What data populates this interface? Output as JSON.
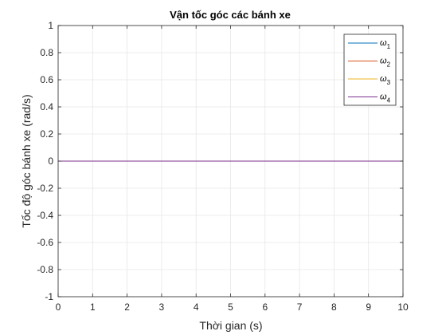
{
  "chart_data": {
    "type": "line",
    "title": "Vận tốc góc các bánh xe",
    "xlabel": "Thời gian (s)",
    "ylabel": "Tốc độ góc bánh xe (rad/s)",
    "xlim": [
      0,
      10
    ],
    "ylim": [
      -1,
      1
    ],
    "xticks": [
      0,
      1,
      2,
      3,
      4,
      5,
      6,
      7,
      8,
      9,
      10
    ],
    "yticks": [
      -1,
      -0.8,
      -0.6,
      -0.4,
      -0.2,
      0,
      0.2,
      0.4,
      0.6,
      0.8,
      1
    ],
    "xtick_labels": [
      "0",
      "1",
      "2",
      "3",
      "4",
      "5",
      "6",
      "7",
      "8",
      "9",
      "10"
    ],
    "ytick_labels": [
      "-1",
      "-0.8",
      "-0.6",
      "-0.4",
      "-0.2",
      "0",
      "0.2",
      "0.4",
      "0.6",
      "0.8",
      "1"
    ],
    "grid": true,
    "legend_position": "top-right",
    "series": [
      {
        "name": "ω1",
        "symbol": "ω",
        "subscript": "1",
        "color": "#0072BD",
        "x": [
          0,
          10
        ],
        "y": [
          0,
          0
        ]
      },
      {
        "name": "ω2",
        "symbol": "ω",
        "subscript": "2",
        "color": "#D95319",
        "x": [
          0,
          10
        ],
        "y": [
          0,
          0
        ]
      },
      {
        "name": "ω3",
        "symbol": "ω",
        "subscript": "3",
        "color": "#EDB120",
        "x": [
          0,
          10
        ],
        "y": [
          0,
          0
        ]
      },
      {
        "name": "ω4",
        "symbol": "ω",
        "subscript": "4",
        "color": "#7E2F8E",
        "x": [
          0,
          10
        ],
        "y": [
          0,
          0
        ]
      }
    ]
  }
}
